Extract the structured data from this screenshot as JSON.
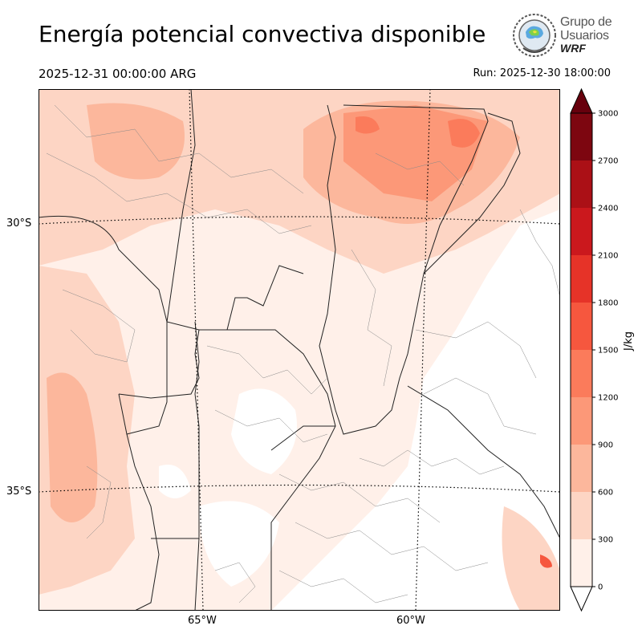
{
  "header": {
    "title": "Energía potencial convectiva disponible",
    "valid_time": "2025-12-31 00:00:00 ARG",
    "run_time": "Run: 2025-12-30 18:00:00"
  },
  "logo": {
    "line1": "Grupo de",
    "line2": "Usuarios",
    "line3": "WRF"
  },
  "map": {
    "lat_labels": [
      "30°S",
      "35°S"
    ],
    "lon_labels": [
      "65°W",
      "60°W"
    ]
  },
  "colorbar": {
    "unit": "J/kg",
    "ticks": [
      "0",
      "300",
      "600",
      "900",
      "1200",
      "1500",
      "1800",
      "2100",
      "2400",
      "2700",
      "3000"
    ],
    "colors": [
      "#fff0e9",
      "#fdd5c4",
      "#fcb79c",
      "#fc9878",
      "#fb7b5b",
      "#f6573e",
      "#e63328",
      "#cb181d",
      "#ab1016",
      "#7d0610"
    ],
    "over_color": "#67000d",
    "under_color": "#ffffff"
  }
}
